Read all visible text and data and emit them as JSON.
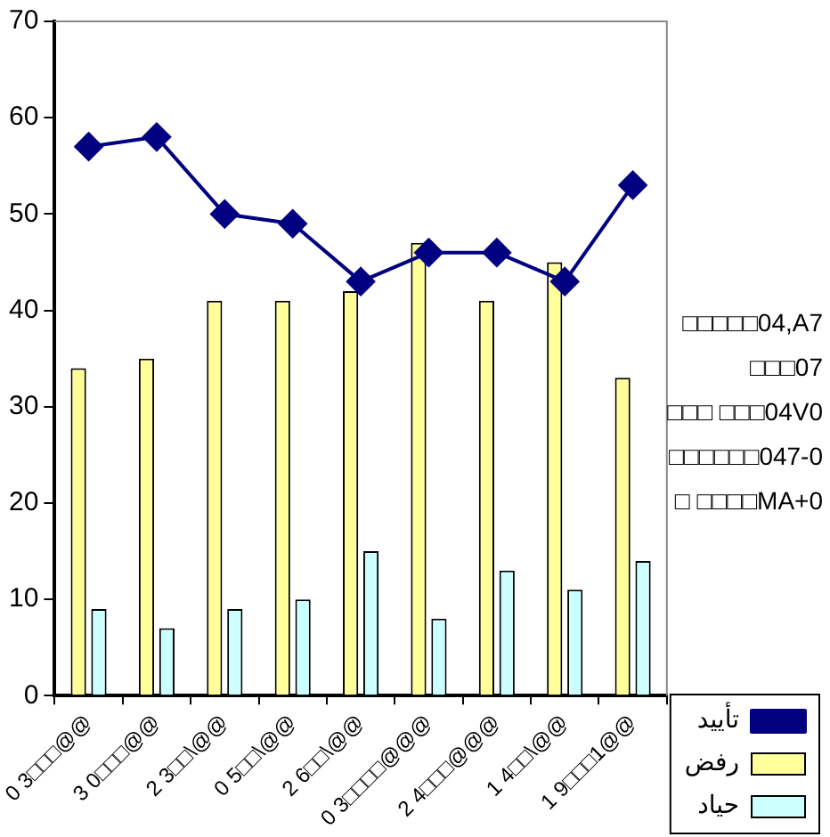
{
  "chart_data": {
    "type": "bar",
    "categories": [
      "0 3□□□@@",
      "3 0□□□@@",
      "2 3□□\\@@",
      "0 5□□\\@@",
      "2 6□□\\@@",
      "0 3□□□□@@@",
      "2 4□□□@@@",
      "1 4□□\\@@",
      "1 9□□□1@@"
    ],
    "series": [
      {
        "name": "رفض",
        "color": "#ffff99",
        "values": [
          34,
          35,
          41,
          41,
          42,
          47,
          41,
          45,
          33
        ]
      },
      {
        "name": "حياد",
        "color": "#ccffff",
        "values": [
          9,
          7,
          9,
          10,
          15,
          8,
          13,
          11,
          14
        ]
      },
      {
        "name": "تأييد",
        "type": "line",
        "color": "#000080",
        "values": [
          57,
          58,
          50,
          49,
          43,
          46,
          46,
          43,
          53
        ]
      }
    ],
    "ylim": [
      0,
      70
    ],
    "yticks": [
      0,
      10,
      20,
      30,
      40,
      50,
      60,
      70
    ],
    "annotations": [
      "□□□□□04,A7",
      "□□□07",
      "□□□ □□□04V0",
      "□□□□□□047-0",
      "□ □□□□MA+0"
    ],
    "grid": false,
    "legend": "bottom right",
    "marker": "diamond",
    "line_style": "solid"
  }
}
